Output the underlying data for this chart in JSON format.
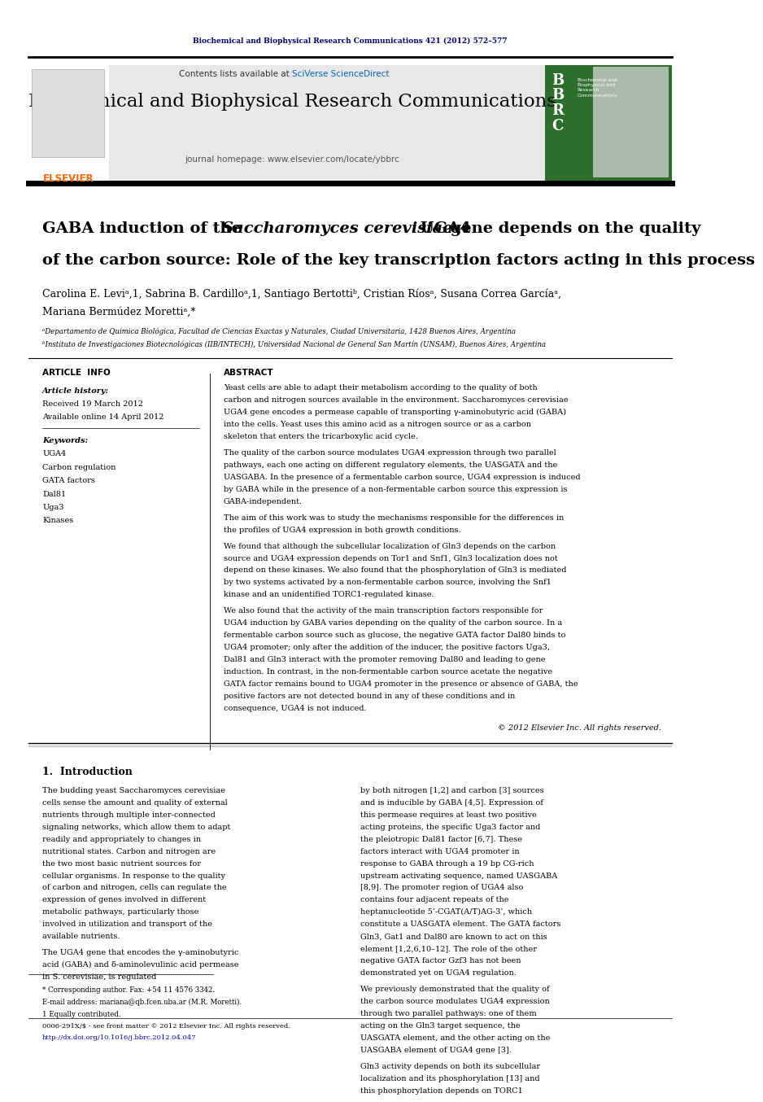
{
  "page_width": 9.92,
  "page_height": 13.23,
  "bg_color": "#ffffff",
  "top_journal_ref": "Biochemical and Biophysical Research Communications 421 (2012) 572–577",
  "top_journal_ref_color": "#000080",
  "header_bg": "#e8e8e8",
  "header_contents": "Contents lists available at ",
  "header_sciverse": "SciVerse ScienceDirect",
  "header_sciverse_color": "#0066cc",
  "journal_name": "Biochemical and Biophysical Research Communications",
  "journal_homepage": "journal homepage: www.elsevier.com/locate/ybbrc",
  "article_title_line1a": "GABA induction of the ",
  "article_title_italic": "Saccharomyces cerevisiae",
  "article_title_line1b": " UGA4",
  "article_title_line1c": " gene depends on the quality",
  "article_title_line2": "of the carbon source: Role of the key transcription factors acting in this process",
  "affil_a": "aDepartamento de Química Biológica, Facultad de Ciencias Exactas y Naturales, Ciudad Universitaria, 1428 Buenos Aires, Argentina",
  "affil_b": "bInstituto de Investigaciones Biotecnológicas (IIB/INTECH), Universidad Nacional de General San Martín (UNSAM), Buenos Aires, Argentina",
  "article_info_label": "ARTICLE  INFO",
  "abstract_label": "ABSTRACT",
  "article_history_label": "Article history:",
  "received": "Received 19 March 2012",
  "available": "Available online 14 April 2012",
  "keywords_label": "Keywords:",
  "keywords": [
    "UGA4",
    "Carbon regulation",
    "GATA factors",
    "Dal81",
    "Uga3",
    "Kinases"
  ],
  "abstract_para1": "Yeast cells are able to adapt their metabolism according to the quality of both carbon and nitrogen sources available in the environment. Saccharomyces cerevisiae UGA4 gene encodes a permease capable of transporting γ-aminobutyric acid (GABA) into the cells. Yeast uses this amino acid as a nitrogen source or as a carbon skeleton that enters the tricarboxylic acid cycle.",
  "abstract_para2": "    The quality of the carbon source modulates UGA4 expression through two parallel pathways, each one acting on different regulatory elements, the UASGATA and the UASGABA. In the presence of a fermentable carbon source, UGA4 expression is induced by GABA while in the presence of a non-fermentable carbon source this expression is GABA-independent.",
  "abstract_para3": "    The aim of this work was to study the mechanisms responsible for the differences in the profiles of UGA4 expression in both growth conditions.",
  "abstract_para4": "    We found that although the subcellular localization of Gln3 depends on the carbon source and UGA4 expression depends on Tor1 and Snf1, Gln3 localization does not depend on these kinases. We also found that the phosphorylation of Gln3 is mediated by two systems activated by a non-fermentable carbon source, involving the Snf1 kinase and an unidentified TORC1-regulated kinase.",
  "abstract_para5": "    We also found that the activity of the main transcription factors responsible for UGA4 induction by GABA varies depending on the quality of the carbon source. In a fermentable carbon source such as glucose, the negative GATA factor Dal80 binds to UGA4 promoter; only after the addition of the inducer, the positive factors Uga3, Dal81 and Gln3 interact with the promoter removing Dal80 and leading to gene induction. In contrast, in the non-fermentable carbon source acetate the negative GATA factor remains bound to UGA4 promoter in the presence or absence of GABA, the positive factors are not detected bound in any of these conditions and in consequence, UGA4 is not induced.",
  "abstract_copyright": "© 2012 Elsevier Inc. All rights reserved.",
  "intro_header": "1.  Introduction",
  "intro_col1_para1": "The budding yeast Saccharomyces cerevisiae cells sense the amount and quality of external nutrients through multiple inter-connected signaling networks, which allow them to adapt readily and appropriately to changes in nutritional states. Carbon and nitrogen are the two most basic nutrient sources for cellular organisms. In response to the quality of carbon and nitrogen, cells can regulate the expression of genes involved in different metabolic pathways, particularly those involved in utilization and transport of the available nutrients.",
  "intro_col1_para2": "    The UGA4 gene that encodes the γ-aminobutyric acid (GABA) and δ-aminolevulinic acid permease in S. cerevisiae, is regulated",
  "intro_col2_para1": "by both nitrogen [1,2] and carbon [3] sources and is inducible by GABA [4,5]. Expression of this permease requires at least two positive acting proteins, the specific Uga3 factor and the pleiotropic Dal81 factor [6,7]. These factors interact with UGA4 promoter in response to GABA through a 19 bp CG-rich upstream activating sequence, named UASGABA [8,9]. The promoter region of UGA4 also contains four adjacent repeats of the heptanucleotide 5’-CGAT(A/T)AG-3’, which constitute a UASGATA element. The GATA factors Gln3, Gat1 and Dal80 are known to act on this element [1,2,6,10–12]. The role of the other negative GATA factor Gzf3 has not been demonstrated yet on UGA4 regulation.",
  "intro_col2_para2": "    We previously demonstrated that the quality of the carbon source modulates UGA4 expression through two parallel pathways: one of them acting on the Gln3 target sequence, the UASGATA element, and the other acting on the UASGABA element of UGA4 gene [3].",
  "intro_col2_para3": "    Gln3 activity depends on both its subcellular localization and its phosphorylation [13] and this phosphorylation depends on TORC1",
  "footnotes_line1": "* Corresponding author. Fax: +54 11 4576 3342.",
  "footnotes_line2": "E-mail address: mariana@qb.fcen.uba.ar (M.R. Moretti).",
  "footnotes_line3": "1 Equally contributed.",
  "bottom_line1": "0006-291X/$ - see front matter © 2012 Elsevier Inc. All rights reserved.",
  "bottom_line2": "http://dx.doi.org/10.1016/j.bbrc.2012.04.047"
}
